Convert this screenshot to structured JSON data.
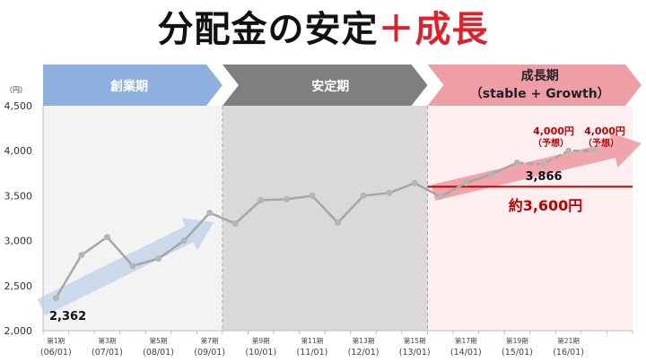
{
  "title": {
    "main": "分配金の安定",
    "accent": "＋成長"
  },
  "phases": [
    {
      "label": "創業期",
      "sub": "",
      "color": "#8eb0de"
    },
    {
      "label": "安定期",
      "sub": "",
      "color": "#7f7f7f"
    },
    {
      "label": "成長期",
      "sub": "（stable + Growth）",
      "color": "#ee9ea6"
    }
  ],
  "colors": {
    "accent": "#c00000",
    "line": "#a6a6a6",
    "phase1_bg": "#f3f3f3",
    "phase2_bg": "#d9d9d9",
    "phase3_bg": "#fdeef0"
  },
  "annotations": {
    "start_value": "2,362",
    "latest_value": "3,866",
    "forecast1": "4,000円",
    "forecast1_note": "（予想）",
    "forecast2": "4,000円",
    "forecast2_note": "（予想）",
    "baseline_label": "約3,600円"
  },
  "chart_data": {
    "type": "line",
    "ylabel": "（円）",
    "ylim": [
      2000,
      4500
    ],
    "yticks": [
      "2,000",
      "2,500",
      "3,000",
      "3,500",
      "4,000",
      "4,500"
    ],
    "ytick_values": [
      2000,
      2500,
      3000,
      3500,
      4000,
      4500
    ],
    "x_tick_labels": [
      {
        "index": 0,
        "period": "第1期",
        "date": "(06/01)"
      },
      {
        "index": 2,
        "period": "第3期",
        "date": "(07/01)"
      },
      {
        "index": 4,
        "period": "第5期",
        "date": "(08/01)"
      },
      {
        "index": 6,
        "period": "第7期",
        "date": "(09/01)"
      },
      {
        "index": 8,
        "period": "第9期",
        "date": "(10/01)"
      },
      {
        "index": 10,
        "period": "第11期",
        "date": "(11/01)"
      },
      {
        "index": 12,
        "period": "第13期",
        "date": "(12/01)"
      },
      {
        "index": 14,
        "period": "第15期",
        "date": "(13/01)"
      },
      {
        "index": 16,
        "period": "第17期",
        "date": "(14/01)"
      },
      {
        "index": 18,
        "period": "第19期",
        "date": "(15/01)"
      },
      {
        "index": 20,
        "period": "第21期",
        "date": "(16/01)"
      }
    ],
    "series": [
      {
        "name": "分配金",
        "values": [
          2362,
          2840,
          3040,
          2720,
          2800,
          3000,
          3310,
          3190,
          3450,
          3460,
          3500,
          3200,
          3500,
          3530,
          3640,
          3490,
          3640,
          3740,
          3866,
          3850,
          4000,
          4000
        ],
        "forecast_from_index": 18
      }
    ],
    "baseline": 3600,
    "phase_boundaries": [
      7,
      15
    ]
  }
}
